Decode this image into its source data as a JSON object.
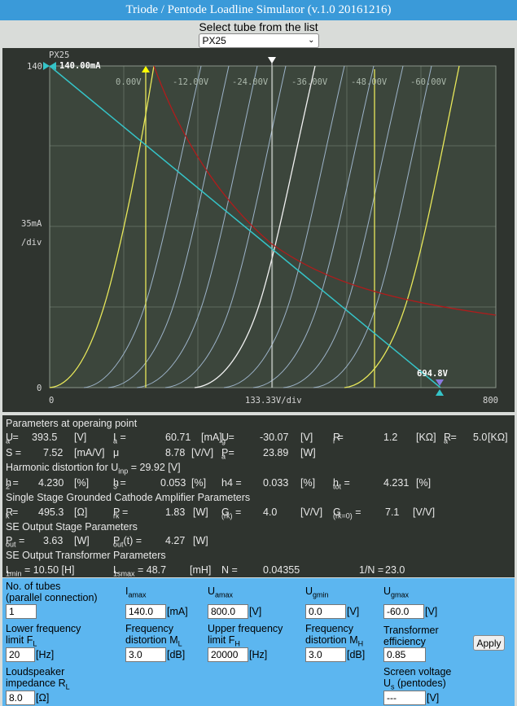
{
  "title": "Triode / Pentode Loadline Simulator (v.1.0 20161216)",
  "select": {
    "label": "Select tube from the list",
    "value": "PX25"
  },
  "plot": {
    "tube_name": "PX25",
    "y_max_label": "140",
    "y_cursor_label": "140.00mA",
    "y_mid_label": "35mA",
    "y_div_label": "/div",
    "y_zero_label": "0",
    "x_zero_label": "0",
    "x_div_label": "133.33V/div",
    "x_max_label": "800",
    "x_cursor_label": "694.8V",
    "grid_voltage_labels": [
      "0.00V",
      "-12.00V",
      "-24.00V",
      "-36.00V",
      "-48.00V",
      "-60.00V"
    ],
    "colors": {
      "background": "#3c463c",
      "grid": "#5e6b5e",
      "curve_blue": "#9db3c9",
      "curve_white": "#f2f2f2",
      "curve_yellow": "#e8e85a",
      "loadline": "#35c4c8",
      "power": "#b01c1c"
    }
  },
  "params": {
    "heading1": "Parameters at operaing point",
    "ua_label": "U",
    "ua_sub": "a",
    "ua_val": "393.5",
    "ua_unit": "[V]",
    "ia_label": "I",
    "ia_sub": "a",
    "ia_val": "60.71",
    "ia_unit": "[mA]",
    "ug_label": "U",
    "ug_sub": "g",
    "ug_val": "-30.07",
    "ug_unit": "[V]",
    "ri_label": "R",
    "ri_sub": "i",
    "ri_val": "1.2",
    "ri_unit": "[KΩ]",
    "ra_label": "R",
    "ra_sub": "a",
    "ra_val": "5.0",
    "ra_unit": "[KΩ]",
    "s_label": "S =",
    "s_val": "7.52",
    "s_unit": "[mA/V]",
    "mu_label": "μ",
    "mu_val": "8.78",
    "mu_unit": "[V/V]",
    "pa_label": "P",
    "pa_sub": "a",
    "pa_val": "23.89",
    "pa_unit": "[W]",
    "heading2": "Harmonic distortion for U",
    "heading2_sub": "inp",
    "heading2_tail": " = 29.92 [V]",
    "h2_label": "h",
    "h2_sub": "2",
    "h2_val": "4.230",
    "h2_unit": "[%]",
    "h3_label": "h",
    "h3_sub": "3",
    "h3_val": "0.053",
    "h3_unit": "[%]",
    "h4_label": "h4 =",
    "h4_val": "0.033",
    "h4_unit": "[%]",
    "htot_label": "h",
    "htot_sub": "tot",
    "htot_val": "4.231",
    "htot_unit": "[%]",
    "heading3": "Single Stage Grounded Cathode Amplifier Parameters",
    "rk_label": "R",
    "rk_sub": "k",
    "rk_val": "495.3",
    "rk_unit": "[Ω]",
    "prk_label": "P",
    "prk_sub": "rk",
    "prk_val": "1.83",
    "prk_unit": "[W]",
    "grk_label": "G",
    "grk_sub": "(rk)",
    "grk_val": "4.0",
    "grk_unit": "[V/V]",
    "grk0_label": "G",
    "grk0_sub": "(rk=0)",
    "grk0_val": "7.1",
    "grk0_unit": "[V/V]",
    "heading4": "SE Output Stage Parameters",
    "pout_label": "P",
    "pout_sub": "out",
    "pout_val": "3.63",
    "pout_unit": "[W]",
    "poutt_label": "P",
    "poutt_sub": "out",
    "poutt_tail": "(t) =",
    "poutt_val": "4.27",
    "poutt_unit": "[W]",
    "heading5": "SE Output Transformer Parameters",
    "l1min_label": "L",
    "l1min_sub": "1min",
    "l1min_val": "= 10.50 [H]",
    "l1smax_label": "L",
    "l1smax_sub": "1smax",
    "l1smax_val": "= 48.7",
    "l1smax_unit": "[mH]",
    "n_label": "N =",
    "n_val": "0.04355",
    "invn_label": "1/N =",
    "invn_val": "23.0"
  },
  "controls": {
    "tubes_label_1": "No. of tubes",
    "tubes_label_2": "(parallel connection)",
    "tubes_value": "1",
    "iamax_label": "I",
    "iamax_sub": "amax",
    "iamax_value": "140.0",
    "iamax_unit": "[mA]",
    "uamax_label": "U",
    "uamax_sub": "amax",
    "uamax_value": "800.0",
    "uamax_unit": "[V]",
    "ugmin_label": "U",
    "ugmin_sub": "gmin",
    "ugmin_value": "0.0",
    "ugmin_unit": "[V]",
    "ugmax_label": "U",
    "ugmax_sub": "gmax",
    "ugmax_value": "-60.0",
    "ugmax_unit": "[V]",
    "fl_label_1": "Lower frequency",
    "fl_label_2": "limit F",
    "fl_sub": "L",
    "fl_value": "20",
    "fl_unit": "[Hz]",
    "ml_label_1": "Frequency",
    "ml_label_2": "distortion M",
    "ml_sub": "L",
    "ml_value": "3.0",
    "ml_unit": "[dB]",
    "fh_label_1": "Upper frequency",
    "fh_label_2": "limit F",
    "fh_sub": "H",
    "fh_value": "20000",
    "fh_unit": "[Hz]",
    "mh_label_1": "Frequency",
    "mh_label_2": "distortion M",
    "mh_sub": "H",
    "mh_value": "3.0",
    "mh_unit": "[dB]",
    "eff_label_1": "Transformer",
    "eff_label_2": "efficiency",
    "eff_value": "0.85",
    "apply_label": "Apply",
    "rl_label_1": "Loudspeaker",
    "rl_label_2": "impedance R",
    "rl_sub": "L",
    "rl_value": "8.0",
    "rl_unit": "[Ω]",
    "us_label_1": "Screen voltage",
    "us_label_2": "U",
    "us_sub": "s",
    "us_tail": " (pentodes)",
    "us_value": "---",
    "us_unit": "[V]"
  }
}
